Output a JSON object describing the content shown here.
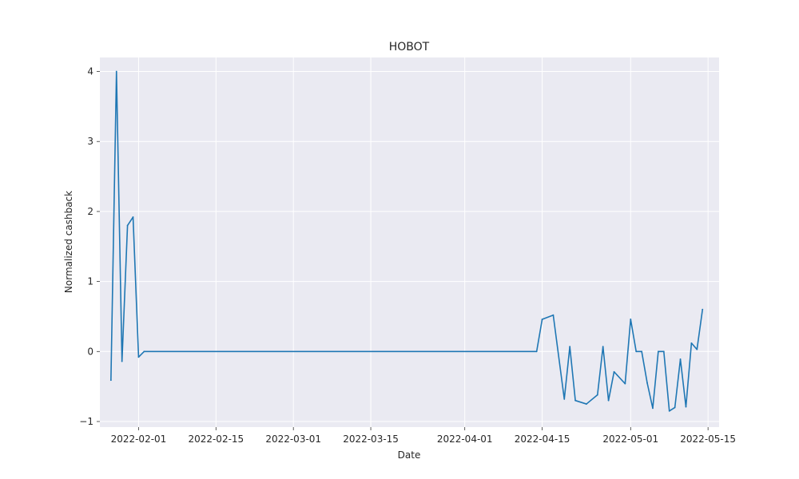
{
  "chart_data": {
    "type": "line",
    "title": "HOBOT",
    "xlabel": "Date",
    "ylabel": "Normalized cashback",
    "x_type": "date",
    "xlim": [
      "2022-01-25",
      "2022-05-17"
    ],
    "ylim": [
      -1.08,
      4.2
    ],
    "x_ticks": [
      "2022-02-01",
      "2022-02-15",
      "2022-03-01",
      "2022-03-15",
      "2022-04-01",
      "2022-04-15",
      "2022-05-01",
      "2022-05-15"
    ],
    "y_ticks": [
      -1,
      0,
      1,
      2,
      3,
      4
    ],
    "y_tick_labels": [
      "−1",
      "0",
      "1",
      "2",
      "3",
      "4"
    ],
    "grid": true,
    "colors": {
      "line": "#1f77b4",
      "plot_background": "#eaeaf2",
      "grid": "#ffffff"
    },
    "series": [
      {
        "x": [
          "2022-01-27",
          "2022-01-28",
          "2022-01-29",
          "2022-01-30",
          "2022-01-31",
          "2022-02-01",
          "2022-02-02",
          "2022-04-14",
          "2022-04-15",
          "2022-04-17",
          "2022-04-19",
          "2022-04-20",
          "2022-04-21",
          "2022-04-23",
          "2022-04-25",
          "2022-04-26",
          "2022-04-27",
          "2022-04-28",
          "2022-04-30",
          "2022-05-01",
          "2022-05-02",
          "2022-05-03",
          "2022-05-04",
          "2022-05-05",
          "2022-05-06",
          "2022-05-07",
          "2022-05-08",
          "2022-05-09",
          "2022-05-10",
          "2022-05-11",
          "2022-05-12",
          "2022-05-13",
          "2022-05-14"
        ],
        "y": [
          -0.41,
          4.0,
          -0.14,
          1.8,
          1.92,
          -0.08,
          0.0,
          0.0,
          0.46,
          0.52,
          -0.68,
          0.07,
          -0.7,
          -0.75,
          -0.62,
          0.07,
          -0.7,
          -0.29,
          -0.46,
          0.46,
          0.0,
          0.0,
          -0.45,
          -0.81,
          0.0,
          0.0,
          -0.85,
          -0.8,
          -0.11,
          -0.79,
          0.12,
          0.03,
          0.6
        ]
      }
    ]
  }
}
